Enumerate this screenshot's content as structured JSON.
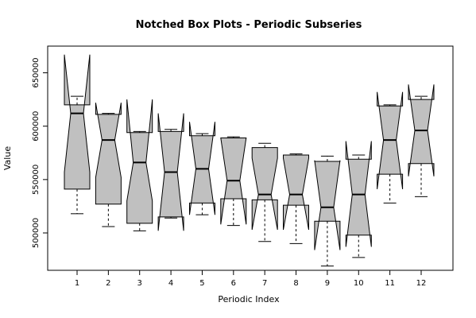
{
  "chart_data": {
    "type": "boxplot",
    "subtype": "notched",
    "title": "Notched Box Plots - Periodic Subseries",
    "xlabel": "Periodic Index",
    "ylabel": "Value",
    "categories": [
      "1",
      "2",
      "3",
      "4",
      "5",
      "6",
      "7",
      "8",
      "9",
      "10",
      "11",
      "12"
    ],
    "y_ticks": [
      500000,
      550000,
      600000,
      650000
    ],
    "y_tick_labels": [
      "500000",
      "550000",
      "600000",
      "650000"
    ],
    "ylim": [
      465000,
      675000
    ],
    "box_fill": "#c0c0c0",
    "grid": false,
    "legend": "none",
    "boxes": [
      {
        "whisker_low": 518000,
        "q1": 541000,
        "median": 612000,
        "q3": 620000,
        "whisker_high": 628000,
        "notch_low": 557000,
        "notch_high": 667000
      },
      {
        "whisker_low": 506000,
        "q1": 527000,
        "median": 587000,
        "q3": 611000,
        "whisker_high": 612000,
        "notch_low": 552000,
        "notch_high": 622000
      },
      {
        "whisker_low": 502000,
        "q1": 509000,
        "median": 566000,
        "q3": 594000,
        "whisker_high": 595000,
        "notch_low": 530000,
        "notch_high": 625000
      },
      {
        "whisker_low": 514000,
        "q1": 515000,
        "median": 557000,
        "q3": 595000,
        "whisker_high": 597000,
        "notch_low": 502000,
        "notch_high": 612000
      },
      {
        "whisker_low": 517000,
        "q1": 528000,
        "median": 560000,
        "q3": 591000,
        "whisker_high": 593000,
        "notch_low": 517000,
        "notch_high": 604000
      },
      {
        "whisker_low": 507000,
        "q1": 532000,
        "median": 549000,
        "q3": 589000,
        "whisker_high": 590000,
        "notch_low": 508000,
        "notch_high": 589000
      },
      {
        "whisker_low": 492000,
        "q1": 531000,
        "median": 536000,
        "q3": 580000,
        "whisker_high": 584000,
        "notch_low": 503000,
        "notch_high": 570000
      },
      {
        "whisker_low": 490000,
        "q1": 526000,
        "median": 536000,
        "q3": 573000,
        "whisker_high": 574000,
        "notch_low": 503000,
        "notch_high": 570000
      },
      {
        "whisker_low": 469000,
        "q1": 511000,
        "median": 524000,
        "q3": 567000,
        "whisker_high": 572000,
        "notch_low": 484000,
        "notch_high": 568000
      },
      {
        "whisker_low": 477000,
        "q1": 498000,
        "median": 536000,
        "q3": 569000,
        "whisker_high": 573000,
        "notch_low": 487000,
        "notch_high": 586000
      },
      {
        "whisker_low": 528000,
        "q1": 555000,
        "median": 587000,
        "q3": 619000,
        "whisker_high": 620000,
        "notch_low": 541000,
        "notch_high": 632000
      },
      {
        "whisker_low": 534000,
        "q1": 565000,
        "median": 596000,
        "q3": 625000,
        "whisker_high": 628000,
        "notch_low": 553000,
        "notch_high": 639000
      }
    ]
  }
}
